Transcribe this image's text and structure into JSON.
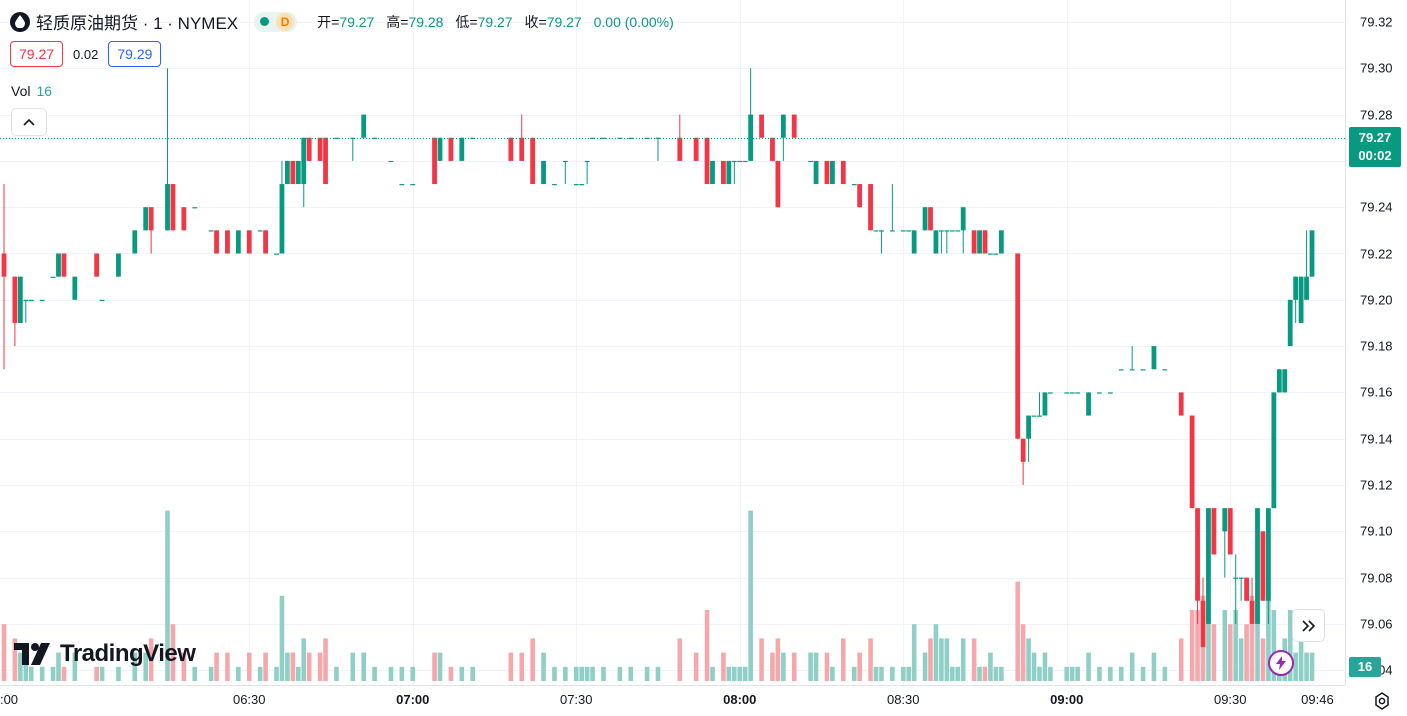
{
  "header": {
    "symbol_title": "轻质原油期货 · 1 · NYMEX",
    "status_letter": "D",
    "open_label": "开=",
    "open_value": "79.27",
    "high_label": "高=",
    "high_value": "79.28",
    "low_label": "低=",
    "low_value": "79.27",
    "close_label": "收=",
    "close_value": "79.27",
    "change": "0.00 (0.00%)"
  },
  "bidask": {
    "bid": "79.27",
    "spread": "0.02",
    "ask": "79.29"
  },
  "volume_legend": {
    "label": "Vol",
    "value": "16"
  },
  "last_price_tag": {
    "price": "79.27",
    "countdown": "00:02"
  },
  "volume_tag": "16",
  "logo_text": "TradingView",
  "colors": {
    "up": "#089981",
    "down": "#f23645",
    "vol_up": "#8fcfc6",
    "vol_down": "#f5a8ab",
    "grid": "#f0f3fa"
  },
  "icons": {
    "symbol": "oil-drop-icon",
    "collapse": "chevron-up-icon",
    "scroll": "double-chevron-right-icon",
    "flash": "lightning-icon",
    "settings": "gear-icon",
    "logo": "tradingview-logo-icon"
  },
  "chart_data": {
    "type": "candlestick",
    "price_axis": {
      "ticks": [
        "79.32",
        "79.30",
        "79.28",
        "79.26",
        "79.24",
        "79.22",
        "79.20",
        "79.18",
        "79.16",
        "79.14",
        "79.12",
        "79.10",
        "79.08",
        "79.06",
        "79.04"
      ]
    },
    "time_axis": {
      "labels": [
        {
          "text": ":00",
          "min": -1,
          "bold": false
        },
        {
          "text": "06:30",
          "min": 45,
          "bold": false
        },
        {
          "text": "07:00",
          "min": 75,
          "bold": true
        },
        {
          "text": "07:30",
          "min": 105,
          "bold": false
        },
        {
          "text": "08:00",
          "min": 135,
          "bold": true
        },
        {
          "text": "08:30",
          "min": 165,
          "bold": false
        },
        {
          "text": "09:00",
          "min": 195,
          "bold": true
        },
        {
          "text": "09:30",
          "min": 225,
          "bold": false
        },
        {
          "text": "09:46",
          "min": 241,
          "bold": false
        }
      ]
    },
    "last_price": 79.27,
    "series_ohlcv": [
      [
        0,
        79.22,
        79.25,
        79.17,
        79.21,
        4
      ],
      [
        2,
        79.21,
        79.21,
        79.18,
        79.19,
        3
      ],
      [
        3,
        79.19,
        79.21,
        79.19,
        79.21,
        2
      ],
      [
        4,
        79.2,
        79.2,
        79.19,
        79.2,
        2
      ],
      [
        5,
        79.2,
        79.2,
        79.2,
        79.2,
        1
      ],
      [
        7,
        79.2,
        79.2,
        79.2,
        79.2,
        1
      ],
      [
        9,
        79.21,
        79.21,
        79.21,
        79.21,
        1
      ],
      [
        10,
        79.21,
        79.22,
        79.21,
        79.22,
        2
      ],
      [
        11,
        79.22,
        79.22,
        79.21,
        79.21,
        1
      ],
      [
        13,
        79.2,
        79.21,
        79.2,
        79.21,
        2
      ],
      [
        17,
        79.22,
        79.22,
        79.21,
        79.21,
        1
      ],
      [
        18,
        79.2,
        79.2,
        79.2,
        79.2,
        1
      ],
      [
        21,
        79.21,
        79.22,
        79.21,
        79.22,
        1
      ],
      [
        24,
        79.22,
        79.23,
        79.22,
        79.23,
        2
      ],
      [
        26,
        79.23,
        79.24,
        79.23,
        79.24,
        2
      ],
      [
        27,
        79.24,
        79.24,
        79.22,
        79.23,
        3
      ],
      [
        30,
        79.23,
        79.3,
        79.23,
        79.25,
        12
      ],
      [
        31,
        79.25,
        79.25,
        79.23,
        79.23,
        4
      ],
      [
        33,
        79.24,
        79.24,
        79.23,
        79.23,
        2
      ],
      [
        35,
        79.24,
        79.24,
        79.24,
        79.24,
        1
      ],
      [
        38,
        79.23,
        79.23,
        79.23,
        79.23,
        1
      ],
      [
        39,
        79.23,
        79.23,
        79.22,
        79.22,
        2
      ],
      [
        41,
        79.23,
        79.23,
        79.22,
        79.22,
        2
      ],
      [
        43,
        79.22,
        79.23,
        79.22,
        79.23,
        1
      ],
      [
        45,
        79.23,
        79.23,
        79.22,
        79.22,
        2
      ],
      [
        47,
        79.23,
        79.23,
        79.23,
        79.23,
        1
      ],
      [
        48,
        79.23,
        79.23,
        79.22,
        79.22,
        2
      ],
      [
        50,
        79.22,
        79.22,
        79.22,
        79.22,
        1
      ],
      [
        51,
        79.22,
        79.26,
        79.22,
        79.25,
        6
      ],
      [
        52,
        79.25,
        79.26,
        79.25,
        79.26,
        2
      ],
      [
        53,
        79.26,
        79.26,
        79.25,
        79.25,
        2
      ],
      [
        54,
        79.25,
        79.26,
        79.25,
        79.26,
        1
      ],
      [
        55,
        79.25,
        79.27,
        79.24,
        79.27,
        3
      ],
      [
        56,
        79.27,
        79.27,
        79.26,
        79.26,
        2
      ],
      [
        58,
        79.27,
        79.27,
        79.26,
        79.26,
        2
      ],
      [
        59,
        79.27,
        79.27,
        79.25,
        79.25,
        3
      ],
      [
        61,
        79.27,
        79.27,
        79.27,
        79.27,
        1
      ],
      [
        64,
        79.27,
        79.27,
        79.26,
        79.27,
        2
      ],
      [
        66,
        79.27,
        79.28,
        79.27,
        79.28,
        2
      ],
      [
        68,
        79.27,
        79.27,
        79.27,
        79.27,
        1
      ],
      [
        71,
        79.26,
        79.26,
        79.26,
        79.26,
        1
      ],
      [
        73,
        79.25,
        79.25,
        79.25,
        79.25,
        1
      ],
      [
        75,
        79.25,
        79.25,
        79.25,
        79.25,
        1
      ],
      [
        79,
        79.27,
        79.27,
        79.25,
        79.25,
        2
      ],
      [
        80,
        79.26,
        79.27,
        79.26,
        79.27,
        2
      ],
      [
        82,
        79.27,
        79.27,
        79.26,
        79.26,
        1
      ],
      [
        84,
        79.26,
        79.27,
        79.26,
        79.27,
        1
      ],
      [
        86,
        79.27,
        79.27,
        79.27,
        79.27,
        1
      ],
      [
        93,
        79.27,
        79.27,
        79.26,
        79.26,
        2
      ],
      [
        95,
        79.27,
        79.28,
        79.26,
        79.26,
        2
      ],
      [
        97,
        79.27,
        79.27,
        79.25,
        79.25,
        3
      ],
      [
        99,
        79.25,
        79.26,
        79.25,
        79.26,
        2
      ],
      [
        101,
        79.25,
        79.25,
        79.25,
        79.25,
        1
      ],
      [
        103,
        79.26,
        79.26,
        79.25,
        79.26,
        1
      ],
      [
        105,
        79.25,
        79.25,
        79.25,
        79.25,
        1
      ],
      [
        106,
        79.25,
        79.25,
        79.25,
        79.25,
        1
      ],
      [
        107,
        79.26,
        79.26,
        79.25,
        79.26,
        1
      ],
      [
        108,
        79.27,
        79.27,
        79.27,
        79.27,
        1
      ],
      [
        110,
        79.27,
        79.27,
        79.27,
        79.27,
        1
      ],
      [
        113,
        79.27,
        79.27,
        79.27,
        79.27,
        1
      ],
      [
        115,
        79.27,
        79.27,
        79.27,
        79.27,
        1
      ],
      [
        118,
        79.27,
        79.27,
        79.27,
        79.27,
        1
      ],
      [
        120,
        79.27,
        79.27,
        79.26,
        79.27,
        1
      ],
      [
        124,
        79.27,
        79.28,
        79.26,
        79.26,
        3
      ],
      [
        127,
        79.27,
        79.27,
        79.26,
        79.26,
        2
      ],
      [
        129,
        79.27,
        79.27,
        79.25,
        79.25,
        5
      ],
      [
        130,
        79.25,
        79.26,
        79.25,
        79.26,
        1
      ],
      [
        132,
        79.26,
        79.26,
        79.25,
        79.25,
        2
      ],
      [
        133,
        79.25,
        79.26,
        79.25,
        79.26,
        1
      ],
      [
        134,
        79.26,
        79.26,
        79.25,
        79.26,
        1
      ],
      [
        135,
        79.26,
        79.26,
        79.26,
        79.26,
        1
      ],
      [
        136,
        79.26,
        79.26,
        79.26,
        79.26,
        1
      ],
      [
        137,
        79.26,
        79.3,
        79.26,
        79.28,
        12
      ],
      [
        139,
        79.28,
        79.28,
        79.27,
        79.27,
        3
      ],
      [
        141,
        79.27,
        79.27,
        79.26,
        79.26,
        2
      ],
      [
        142,
        79.26,
        79.26,
        79.24,
        79.24,
        3
      ],
      [
        143,
        79.27,
        79.28,
        79.26,
        79.28,
        2
      ],
      [
        145,
        79.28,
        79.28,
        79.27,
        79.27,
        2
      ],
      [
        148,
        79.26,
        79.26,
        79.26,
        79.26,
        2
      ],
      [
        149,
        79.25,
        79.26,
        79.25,
        79.26,
        2
      ],
      [
        151,
        79.26,
        79.26,
        79.25,
        79.25,
        2
      ],
      [
        152,
        79.25,
        79.26,
        79.25,
        79.26,
        1
      ],
      [
        154,
        79.26,
        79.26,
        79.25,
        79.25,
        3
      ],
      [
        156,
        79.25,
        79.25,
        79.25,
        79.25,
        1
      ],
      [
        157,
        79.25,
        79.25,
        79.24,
        79.24,
        2
      ],
      [
        159,
        79.25,
        79.25,
        79.23,
        79.23,
        3
      ],
      [
        160,
        79.23,
        79.23,
        79.23,
        79.23,
        1
      ],
      [
        161,
        79.23,
        79.23,
        79.22,
        79.23,
        1
      ],
      [
        163,
        79.23,
        79.25,
        79.23,
        79.23,
        1
      ],
      [
        165,
        79.23,
        79.23,
        79.23,
        79.23,
        1
      ],
      [
        166,
        79.23,
        79.23,
        79.23,
        79.23,
        1
      ],
      [
        167,
        79.22,
        79.23,
        79.22,
        79.23,
        4
      ],
      [
        169,
        79.23,
        79.24,
        79.23,
        79.24,
        2
      ],
      [
        170,
        79.24,
        79.24,
        79.23,
        79.23,
        3
      ],
      [
        171,
        79.22,
        79.23,
        79.22,
        79.23,
        4
      ],
      [
        172,
        79.23,
        79.23,
        79.22,
        79.23,
        3
      ],
      [
        173,
        79.23,
        79.23,
        79.22,
        79.23,
        3
      ],
      [
        174,
        79.23,
        79.23,
        79.23,
        79.23,
        1
      ],
      [
        175,
        79.23,
        79.23,
        79.23,
        79.23,
        1
      ],
      [
        176,
        79.23,
        79.24,
        79.22,
        79.24,
        3
      ],
      [
        178,
        79.23,
        79.23,
        79.22,
        79.22,
        3
      ],
      [
        179,
        79.22,
        79.23,
        79.22,
        79.23,
        1
      ],
      [
        180,
        79.23,
        79.23,
        79.22,
        79.22,
        1
      ],
      [
        181,
        79.22,
        79.22,
        79.22,
        79.22,
        2
      ],
      [
        182,
        79.22,
        79.22,
        79.22,
        79.22,
        1
      ],
      [
        183,
        79.22,
        79.23,
        79.22,
        79.23,
        1
      ],
      [
        186,
        79.22,
        79.22,
        79.14,
        79.14,
        7
      ],
      [
        187,
        79.14,
        79.14,
        79.12,
        79.13,
        4
      ],
      [
        188,
        79.14,
        79.15,
        79.13,
        79.15,
        3
      ],
      [
        189,
        79.15,
        79.15,
        79.15,
        79.15,
        2
      ],
      [
        190,
        79.15,
        79.16,
        79.15,
        79.15,
        1
      ],
      [
        191,
        79.15,
        79.16,
        79.15,
        79.16,
        2
      ],
      [
        192,
        79.16,
        79.16,
        79.16,
        79.16,
        1
      ],
      [
        195,
        79.16,
        79.16,
        79.16,
        79.16,
        1
      ],
      [
        196,
        79.16,
        79.16,
        79.16,
        79.16,
        1
      ],
      [
        197,
        79.16,
        79.16,
        79.16,
        79.16,
        1
      ],
      [
        199,
        79.15,
        79.16,
        79.15,
        79.16,
        2
      ],
      [
        201,
        79.16,
        79.16,
        79.16,
        79.16,
        1
      ],
      [
        203,
        79.16,
        79.16,
        79.16,
        79.16,
        1
      ],
      [
        205,
        79.17,
        79.17,
        79.17,
        79.17,
        1
      ],
      [
        207,
        79.17,
        79.18,
        79.17,
        79.17,
        2
      ],
      [
        209,
        79.17,
        79.17,
        79.17,
        79.17,
        1
      ],
      [
        211,
        79.17,
        79.18,
        79.17,
        79.18,
        2
      ],
      [
        213,
        79.17,
        79.17,
        79.17,
        79.17,
        1
      ],
      [
        216,
        79.16,
        79.16,
        79.15,
        79.15,
        3
      ],
      [
        218,
        79.15,
        79.15,
        79.11,
        79.11,
        5
      ],
      [
        219,
        79.11,
        79.11,
        79.06,
        79.07,
        5
      ],
      [
        220,
        79.07,
        79.08,
        79.05,
        79.05,
        6
      ],
      [
        221,
        79.06,
        79.11,
        79.06,
        79.11,
        5
      ],
      [
        222,
        79.11,
        79.11,
        79.09,
        79.09,
        4
      ],
      [
        224,
        79.1,
        79.11,
        79.08,
        79.11,
        5
      ],
      [
        225,
        79.11,
        79.11,
        79.09,
        79.09,
        4
      ],
      [
        226,
        79.08,
        79.09,
        79.06,
        79.08,
        5
      ],
      [
        227,
        79.08,
        79.08,
        79.07,
        79.08,
        3
      ],
      [
        228,
        79.08,
        79.08,
        79.07,
        79.07,
        4
      ],
      [
        229,
        79.07,
        79.08,
        79.06,
        79.06,
        6
      ],
      [
        230,
        79.06,
        79.11,
        79.06,
        79.11,
        5
      ],
      [
        231,
        79.1,
        79.1,
        79.07,
        79.07,
        3
      ],
      [
        232,
        79.07,
        79.11,
        79.06,
        79.11,
        6
      ],
      [
        233,
        79.11,
        79.16,
        79.11,
        79.16,
        5
      ],
      [
        234,
        79.16,
        79.17,
        79.16,
        79.17,
        2
      ],
      [
        235,
        79.16,
        79.17,
        79.16,
        79.17,
        3
      ],
      [
        236,
        79.18,
        79.2,
        79.18,
        79.2,
        5
      ],
      [
        237,
        79.2,
        79.21,
        79.19,
        79.21,
        2
      ],
      [
        238,
        79.19,
        79.21,
        79.19,
        79.21,
        3
      ],
      [
        239,
        79.2,
        79.23,
        79.2,
        79.21,
        2
      ],
      [
        240,
        79.21,
        79.23,
        79.21,
        79.23,
        2
      ]
    ]
  }
}
